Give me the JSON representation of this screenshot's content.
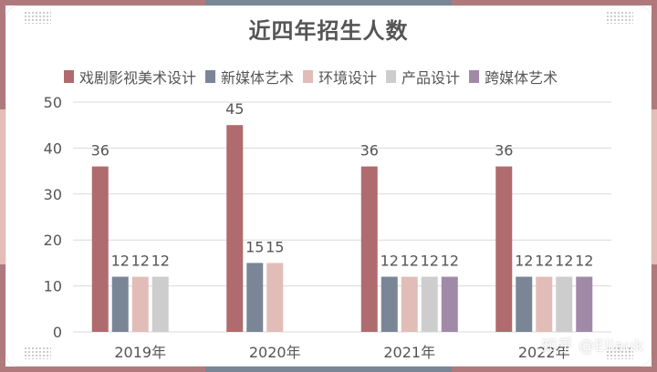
{
  "colors": {
    "series": [
      "#b06b6e",
      "#7a8696",
      "#e2bdb8",
      "#cdcdcd",
      "#a08aa8"
    ],
    "axis_text": "#555555",
    "grid": "#d9d9d9"
  },
  "chart_data": {
    "type": "bar",
    "title": "近四年招生人数",
    "categories": [
      "2019年",
      "2020年",
      "2021年",
      "2022年"
    ],
    "series": [
      {
        "name": "戏剧影视美术设计",
        "values": [
          36,
          45,
          36,
          36
        ]
      },
      {
        "name": "新媒体艺术",
        "values": [
          12,
          15,
          12,
          12
        ]
      },
      {
        "name": "环境设计",
        "values": [
          12,
          15,
          12,
          12
        ]
      },
      {
        "name": "产品设计",
        "values": [
          12,
          null,
          12,
          12
        ]
      },
      {
        "name": "跨媒体艺术",
        "values": [
          null,
          null,
          12,
          12
        ]
      }
    ],
    "ylim": [
      0,
      50
    ],
    "yticks": [
      0,
      10,
      20,
      30,
      40,
      50
    ],
    "grid": true,
    "legend_position": "top",
    "data_labels": true
  },
  "watermark": "知乎 @Eliauk"
}
